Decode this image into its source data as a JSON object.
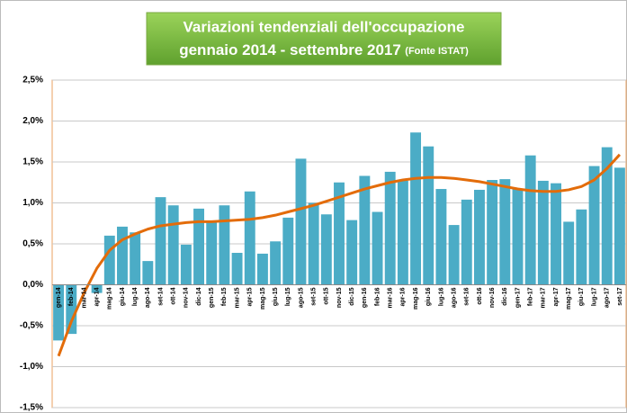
{
  "chart_data": {
    "type": "bar",
    "title": "Variazioni  tendenziali dell'occupazione",
    "subtitle": "gennaio 2014 -  settembre 2017",
    "source": "(Fonte ISTAT)",
    "categories": [
      "gen-14",
      "feb-14",
      "mar-14",
      "apr-14",
      "mag-14",
      "giu-14",
      "lug-14",
      "ago-14",
      "set-14",
      "ott-14",
      "nov-14",
      "dic-14",
      "gen-15",
      "feb-15",
      "mar-15",
      "apr-15",
      "mag-15",
      "giu-15",
      "lug-15",
      "ago-15",
      "set-15",
      "ott-15",
      "nov-15",
      "dic-15",
      "gen-16",
      "feb-16",
      "mar-16",
      "apr-16",
      "mag-16",
      "giu-16",
      "lug-16",
      "ago-16",
      "set-16",
      "ott-16",
      "nov-16",
      "dic-16",
      "gen-17",
      "feb-17",
      "mar-17",
      "apr-17",
      "mag-17",
      "giu-17",
      "lug-17",
      "ago-17",
      "set-17"
    ],
    "series": [
      {
        "type": "bar",
        "color": "#4bacc6",
        "values": [
          -0.68,
          -0.6,
          0,
          -0.1,
          0.6,
          0.71,
          0.64,
          0.29,
          1.07,
          0.97,
          0.49,
          0.93,
          0.77,
          0.97,
          0.39,
          1.14,
          0.38,
          0.53,
          0.82,
          1.54,
          1.0,
          0.86,
          1.25,
          0.79,
          1.33,
          0.89,
          1.38,
          1.27,
          1.86,
          1.69,
          1.17,
          0.73,
          1.04,
          1.16,
          1.28,
          1.29,
          1.17,
          1.58,
          1.27,
          1.24,
          0.77,
          0.92,
          1.45,
          1.68,
          1.43
        ]
      },
      {
        "type": "line",
        "color": "#e36c0a",
        "values": [
          -0.87,
          -0.45,
          -0.1,
          0.2,
          0.42,
          0.55,
          0.62,
          0.68,
          0.72,
          0.74,
          0.76,
          0.77,
          0.77,
          0.78,
          0.79,
          0.8,
          0.82,
          0.85,
          0.89,
          0.93,
          0.97,
          1.02,
          1.07,
          1.12,
          1.17,
          1.21,
          1.25,
          1.28,
          1.3,
          1.31,
          1.31,
          1.3,
          1.28,
          1.26,
          1.23,
          1.2,
          1.17,
          1.15,
          1.14,
          1.14,
          1.16,
          1.2,
          1.28,
          1.42,
          1.59
        ]
      }
    ],
    "ylim": [
      -1.5,
      2.5
    ],
    "yticks": [
      {
        "value": -1.5,
        "label": "-1,5%"
      },
      {
        "value": -1,
        "label": "-1,0%"
      },
      {
        "value": -0.5,
        "label": "-0,5%"
      },
      {
        "value": 0,
        "label": "0,0%"
      },
      {
        "value": 0.5,
        "label": "0,5%"
      },
      {
        "value": 1,
        "label": "1,0%"
      },
      {
        "value": 1.5,
        "label": "1,5%"
      },
      {
        "value": 2,
        "label": "2,0%"
      },
      {
        "value": 2.5,
        "label": "2,5%"
      }
    ],
    "grid": true
  }
}
